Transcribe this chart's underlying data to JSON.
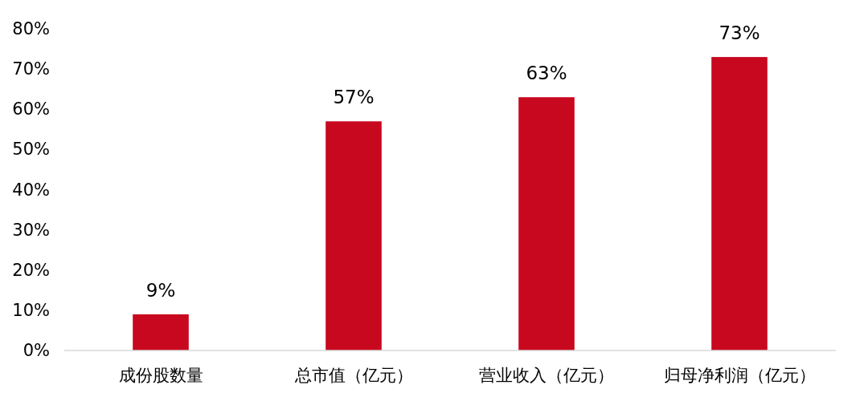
{
  "chart_data": {
    "type": "bar",
    "categories": [
      "成份股数量",
      "总市值（亿元）",
      "营业收入（亿元）",
      "归母净利润（亿元）"
    ],
    "values": [
      9,
      57,
      63,
      73
    ],
    "value_labels": [
      "9%",
      "57%",
      "63%",
      "73%"
    ],
    "color": "#c8081e",
    "ylim": [
      0,
      80
    ],
    "yticks": [
      {
        "value": 0,
        "label": "0%"
      },
      {
        "value": 10,
        "label": "10%"
      },
      {
        "value": 20,
        "label": "20%"
      },
      {
        "value": 30,
        "label": "30%"
      },
      {
        "value": 40,
        "label": "40%"
      },
      {
        "value": 50,
        "label": "50%"
      },
      {
        "value": 60,
        "label": "60%"
      },
      {
        "value": 70,
        "label": "70%"
      },
      {
        "value": 80,
        "label": "80%"
      }
    ],
    "grid": false
  }
}
